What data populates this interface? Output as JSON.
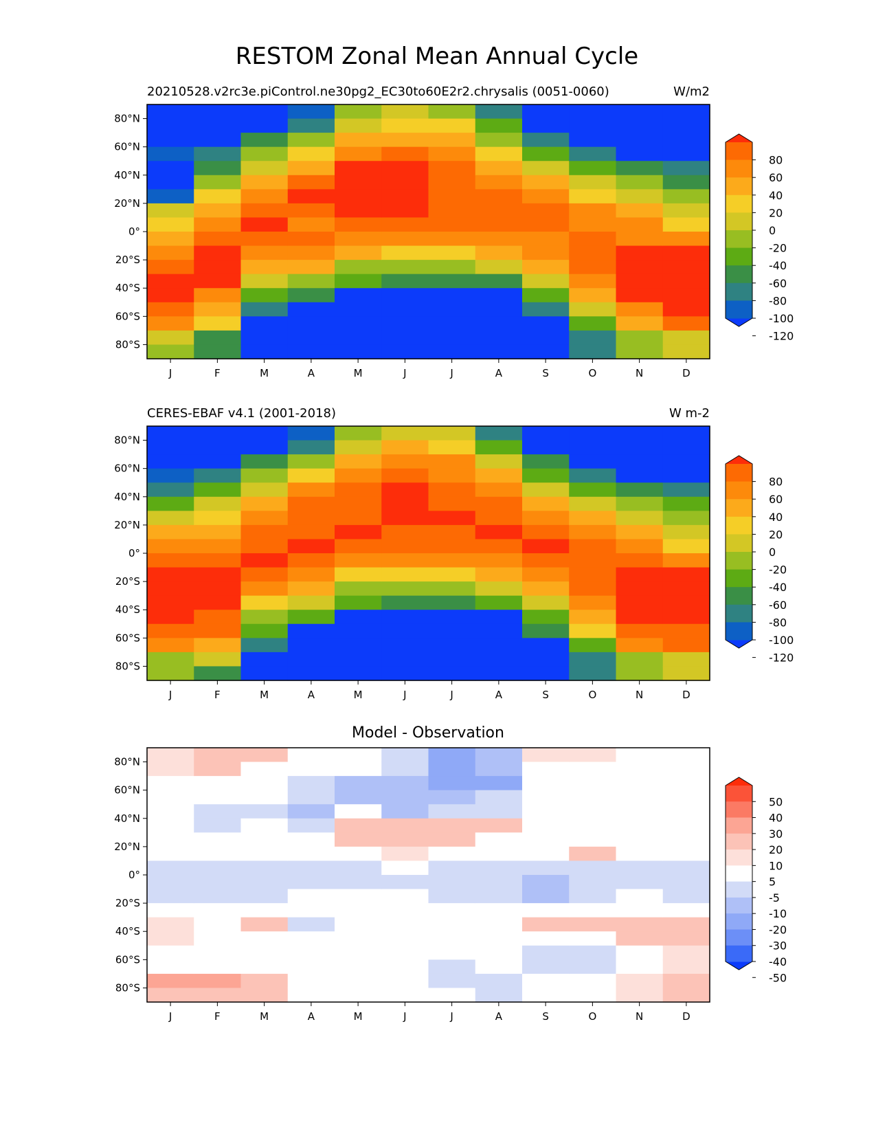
{
  "figure": {
    "title": "RESTOM Zonal Mean Annual Cycle"
  },
  "colors": {
    "test_levels": [
      "#0c3bfa",
      "#0d60c5",
      "#2f8282",
      "#3a8f46",
      "#5dab14",
      "#98be22",
      "#d3c725",
      "#f5ce27",
      "#fcaa1b",
      "#fd8a0b",
      "#fd6a03",
      "#fd2d0a"
    ],
    "diff_levels": [
      "#0c3bfa",
      "#3a6af8",
      "#6c8ff7",
      "#8fa9f7",
      "#afc0f7",
      "#d2dbf7",
      "#ffffff",
      "#fde0da",
      "#fcc3b7",
      "#fca594",
      "#fb7a64",
      "#fb5338",
      "#fd2d0a"
    ]
  },
  "chart_data": [
    {
      "type": "heatmap",
      "panel": "test",
      "title_left": "20210528.v2rc3e.piControl.ne30pg2_EC30to60E2r2.chrysalis (0051-0060)",
      "title_right": "W/m2",
      "xlabel": "",
      "ylabel": "",
      "x_categories": [
        "J",
        "F",
        "M",
        "A",
        "M",
        "J",
        "J",
        "A",
        "S",
        "O",
        "N",
        "D"
      ],
      "y_ticks": [
        "80°N",
        "60°N",
        "40°N",
        "20°N",
        "0°",
        "20°S",
        "40°S",
        "60°S",
        "80°S"
      ],
      "ylim": [
        -90,
        90
      ],
      "lat_bands": [
        90,
        80,
        70,
        60,
        50,
        40,
        30,
        20,
        10,
        0,
        -10,
        -20,
        -30,
        -40,
        -50,
        -60,
        -70,
        -80,
        -90
      ],
      "values": [
        [
          -150,
          -150,
          -150,
          -110,
          -150,
          -130,
          -110,
          -20,
          0,
          20,
          40,
          60,
          80,
          80,
          60,
          40,
          -10,
          -30
        ],
        [
          -150,
          -150,
          -150,
          -90,
          -70,
          -30,
          10,
          20,
          40,
          60,
          80,
          80,
          80,
          40,
          20,
          0,
          -80,
          -80
        ],
        [
          -150,
          -150,
          -80,
          -40,
          -10,
          20,
          40,
          60,
          80,
          60,
          40,
          20,
          -20,
          -60,
          -90,
          -150,
          -150,
          -150
        ],
        [
          -110,
          -90,
          -30,
          0,
          30,
          60,
          80,
          60,
          50,
          60,
          40,
          20,
          -40,
          -80,
          -150,
          -150,
          -150,
          -150
        ],
        [
          -40,
          -10,
          20,
          40,
          80,
          80,
          80,
          80,
          60,
          50,
          20,
          -30,
          -50,
          -150,
          -150,
          -150,
          -150,
          -150
        ],
        [
          -20,
          10,
          30,
          60,
          80,
          80,
          90,
          80,
          70,
          50,
          0,
          -40,
          -80,
          -150,
          -150,
          -150,
          -150,
          -150
        ],
        [
          -30,
          0,
          20,
          40,
          60,
          70,
          70,
          70,
          60,
          50,
          0,
          -40,
          -80,
          -150,
          -150,
          -150,
          -150,
          -150
        ],
        [
          -100,
          -50,
          -30,
          10,
          30,
          40,
          60,
          60,
          60,
          50,
          20,
          -20,
          -70,
          -150,
          -150,
          -150,
          -150,
          -150
        ],
        [
          -150,
          -150,
          -90,
          -50,
          -20,
          20,
          40,
          60,
          60,
          40,
          40,
          20,
          -20,
          -60,
          -100,
          -150,
          -150,
          -150
        ],
        [
          -150,
          -150,
          -150,
          -100,
          -60,
          -20,
          10,
          40,
          50,
          60,
          60,
          60,
          40,
          20,
          -20,
          -60,
          -100,
          -100
        ],
        [
          -150,
          -150,
          -150,
          -150,
          -70,
          -40,
          -10,
          20,
          40,
          50,
          80,
          80,
          80,
          80,
          50,
          20,
          -40,
          -30
        ],
        [
          -150,
          -150,
          -150,
          -150,
          -100,
          -70,
          -40,
          -20,
          10,
          40,
          80,
          80,
          80,
          80,
          80,
          70,
          -10,
          -10
        ]
      ]
    },
    {
      "type": "heatmap",
      "panel": "reference",
      "title_left": "CERES-EBAF v4.1 (2001-2018)",
      "title_right": "W m-2",
      "xlabel": "",
      "ylabel": "",
      "x_categories": [
        "J",
        "F",
        "M",
        "A",
        "M",
        "J",
        "J",
        "A",
        "S",
        "O",
        "N",
        "D"
      ],
      "y_ticks": [
        "80°N",
        "60°N",
        "40°N",
        "20°N",
        "0°",
        "20°S",
        "40°S",
        "60°S",
        "80°S"
      ],
      "ylim": [
        -90,
        90
      ],
      "lat_bands": [
        90,
        80,
        70,
        60,
        50,
        40,
        30,
        20,
        10,
        0,
        -10,
        -20,
        -30,
        -40,
        -50,
        -60,
        -70,
        -80,
        -90
      ],
      "values": [
        [
          -150,
          -150,
          -150,
          -110,
          -90,
          -50,
          -10,
          20,
          40,
          60,
          80,
          80,
          80,
          80,
          70,
          40,
          -30,
          -30
        ],
        [
          -150,
          -150,
          -150,
          -100,
          -50,
          -20,
          10,
          20,
          40,
          70,
          80,
          80,
          80,
          70,
          60,
          30,
          -20,
          -80
        ],
        [
          -150,
          -150,
          -80,
          -40,
          -10,
          20,
          40,
          60,
          70,
          80,
          70,
          40,
          10,
          -30,
          -60,
          -90,
          -150,
          -150
        ],
        [
          -110,
          -90,
          -40,
          0,
          40,
          60,
          60,
          70,
          80,
          60,
          40,
          20,
          -20,
          -60,
          -150,
          -150,
          -150,
          -150
        ],
        [
          -40,
          -10,
          20,
          40,
          70,
          70,
          70,
          80,
          60,
          40,
          10,
          -30,
          -60,
          -150,
          -150,
          -150,
          -150,
          -150
        ],
        [
          -20,
          20,
          50,
          60,
          80,
          80,
          80,
          70,
          60,
          40,
          0,
          -40,
          -80,
          -150,
          -150,
          -150,
          -150,
          -150
        ],
        [
          -10,
          10,
          40,
          50,
          70,
          70,
          80,
          70,
          60,
          40,
          0,
          -40,
          -80,
          -150,
          -150,
          -150,
          -150,
          -150
        ],
        [
          -100,
          -50,
          -20,
          20,
          40,
          60,
          70,
          80,
          60,
          40,
          20,
          -20,
          -60,
          -150,
          -150,
          -150,
          -150,
          -150
        ],
        [
          -150,
          -150,
          -80,
          -50,
          -20,
          20,
          40,
          70,
          80,
          60,
          40,
          20,
          -20,
          -60,
          -80,
          -150,
          -150,
          -150
        ],
        [
          -150,
          -150,
          -150,
          -100,
          -60,
          -20,
          20,
          40,
          60,
          60,
          60,
          60,
          40,
          20,
          0,
          -60,
          -100,
          -100
        ],
        [
          -150,
          -150,
          -150,
          -150,
          -80,
          -40,
          -20,
          20,
          40,
          70,
          90,
          90,
          90,
          90,
          70,
          40,
          -40,
          -40
        ],
        [
          -150,
          -150,
          -150,
          -150,
          -90,
          -60,
          -30,
          -20,
          10,
          40,
          80,
          80,
          80,
          80,
          70,
          60,
          -10,
          -20
        ]
      ]
    },
    {
      "type": "heatmap",
      "panel": "difference",
      "title": "Model - Observation",
      "xlabel": "",
      "ylabel": "",
      "x_categories": [
        "J",
        "F",
        "M",
        "A",
        "M",
        "J",
        "J",
        "A",
        "S",
        "O",
        "N",
        "D"
      ],
      "y_ticks": [
        "80°N",
        "60°N",
        "40°N",
        "20°N",
        "0°",
        "20°S",
        "40°S",
        "60°S",
        "80°S"
      ],
      "ylim": [
        -90,
        90
      ],
      "lat_bands": [
        90,
        80,
        70,
        60,
        50,
        40,
        30,
        20,
        10,
        0,
        -10,
        -20,
        -30,
        -40,
        -50,
        -60,
        -70,
        -80,
        -90
      ],
      "values": [
        [
          8,
          8,
          0,
          0,
          0,
          0,
          0,
          0,
          -8,
          -8,
          -8,
          0,
          8,
          8,
          0,
          0,
          20,
          10
        ],
        [
          10,
          10,
          0,
          0,
          -8,
          -8,
          0,
          0,
          -8,
          -8,
          -8,
          0,
          0,
          0,
          0,
          0,
          20,
          10
        ],
        [
          10,
          0,
          0,
          0,
          -8,
          0,
          0,
          0,
          -8,
          -8,
          -8,
          0,
          10,
          0,
          0,
          0,
          10,
          15
        ],
        [
          0,
          0,
          -8,
          -8,
          -12,
          -8,
          0,
          0,
          -8,
          -8,
          0,
          0,
          -8,
          0,
          0,
          0,
          0,
          0
        ],
        [
          0,
          0,
          -15,
          -18,
          0,
          12,
          12,
          0,
          -8,
          -8,
          0,
          0,
          0,
          0,
          0,
          0,
          0,
          0
        ],
        [
          -8,
          -8,
          -18,
          -18,
          -12,
          12,
          18,
          8,
          0,
          -8,
          0,
          0,
          0,
          0,
          0,
          0,
          0,
          0
        ],
        [
          -25,
          -25,
          -30,
          -20,
          -8,
          12,
          12,
          0,
          -8,
          -8,
          -8,
          0,
          0,
          0,
          0,
          -8,
          -8,
          0
        ],
        [
          -15,
          -15,
          -25,
          -8,
          -8,
          12,
          0,
          0,
          -8,
          -8,
          -8,
          0,
          0,
          0,
          0,
          0,
          -8,
          -8
        ],
        [
          8,
          0,
          0,
          0,
          0,
          0,
          0,
          0,
          -8,
          -15,
          -15,
          0,
          10,
          0,
          -8,
          -8,
          0,
          0
        ],
        [
          8,
          0,
          0,
          0,
          0,
          0,
          0,
          10,
          -8,
          -8,
          -8,
          0,
          15,
          0,
          -8,
          -8,
          0,
          0
        ],
        [
          0,
          0,
          0,
          0,
          0,
          0,
          0,
          0,
          -8,
          -8,
          0,
          0,
          15,
          15,
          0,
          0,
          8,
          8
        ],
        [
          0,
          0,
          0,
          0,
          0,
          0,
          0,
          0,
          -8,
          -8,
          -8,
          0,
          15,
          15,
          8,
          8,
          15,
          15
        ]
      ]
    }
  ],
  "colorbars": [
    {
      "ticks": [
        "80",
        "60",
        "40",
        "20",
        "0",
        "-20",
        "-40",
        "-60",
        "-80",
        "-100",
        "-120"
      ]
    },
    {
      "ticks": [
        "80",
        "60",
        "40",
        "20",
        "0",
        "-20",
        "-40",
        "-60",
        "-80",
        "-100",
        "-120"
      ]
    },
    {
      "ticks": [
        "50",
        "40",
        "30",
        "20",
        "10",
        "5",
        "-5",
        "-10",
        "-20",
        "-30",
        "-40",
        "-50"
      ]
    }
  ]
}
